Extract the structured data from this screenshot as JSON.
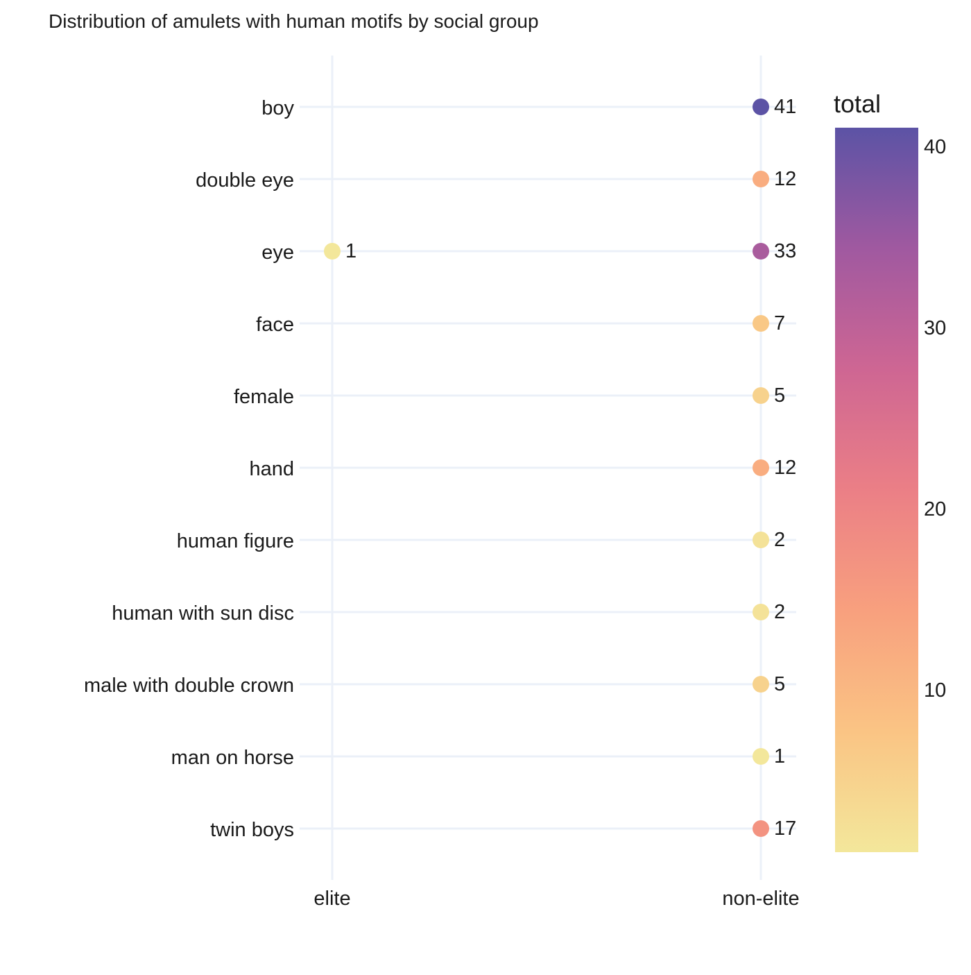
{
  "chart_data": {
    "type": "scatter",
    "title": "Distribution of amulets with human motifs by social group",
    "xlabel": "",
    "ylabel": "",
    "x_categories": [
      "elite",
      "non-elite"
    ],
    "y_categories": [
      "boy",
      "double eye",
      "eye",
      "face",
      "female",
      "hand",
      "human figure",
      "human with sun disc",
      "male with double crown",
      "man on horse",
      "twin boys"
    ],
    "points": [
      {
        "x": "elite",
        "y": "eye",
        "value": 1
      },
      {
        "x": "non-elite",
        "y": "boy",
        "value": 41
      },
      {
        "x": "non-elite",
        "y": "double eye",
        "value": 12
      },
      {
        "x": "non-elite",
        "y": "eye",
        "value": 33
      },
      {
        "x": "non-elite",
        "y": "face",
        "value": 7
      },
      {
        "x": "non-elite",
        "y": "female",
        "value": 5
      },
      {
        "x": "non-elite",
        "y": "hand",
        "value": 12
      },
      {
        "x": "non-elite",
        "y": "human figure",
        "value": 2
      },
      {
        "x": "non-elite",
        "y": "human with sun disc",
        "value": 2
      },
      {
        "x": "non-elite",
        "y": "male with double crown",
        "value": 5
      },
      {
        "x": "non-elite",
        "y": "man on horse",
        "value": 1
      },
      {
        "x": "non-elite",
        "y": "twin boys",
        "value": 17
      }
    ],
    "colorbar": {
      "title": "total",
      "range": [
        1,
        41
      ],
      "ticks": [
        10,
        20,
        30,
        40
      ],
      "colorscale": [
        "#f3e79b",
        "#fac484",
        "#f8a07e",
        "#eb7f86",
        "#ce6693",
        "#a059a0",
        "#5c53a5"
      ]
    },
    "grid": true,
    "grid_color": "#ebf0f8"
  }
}
